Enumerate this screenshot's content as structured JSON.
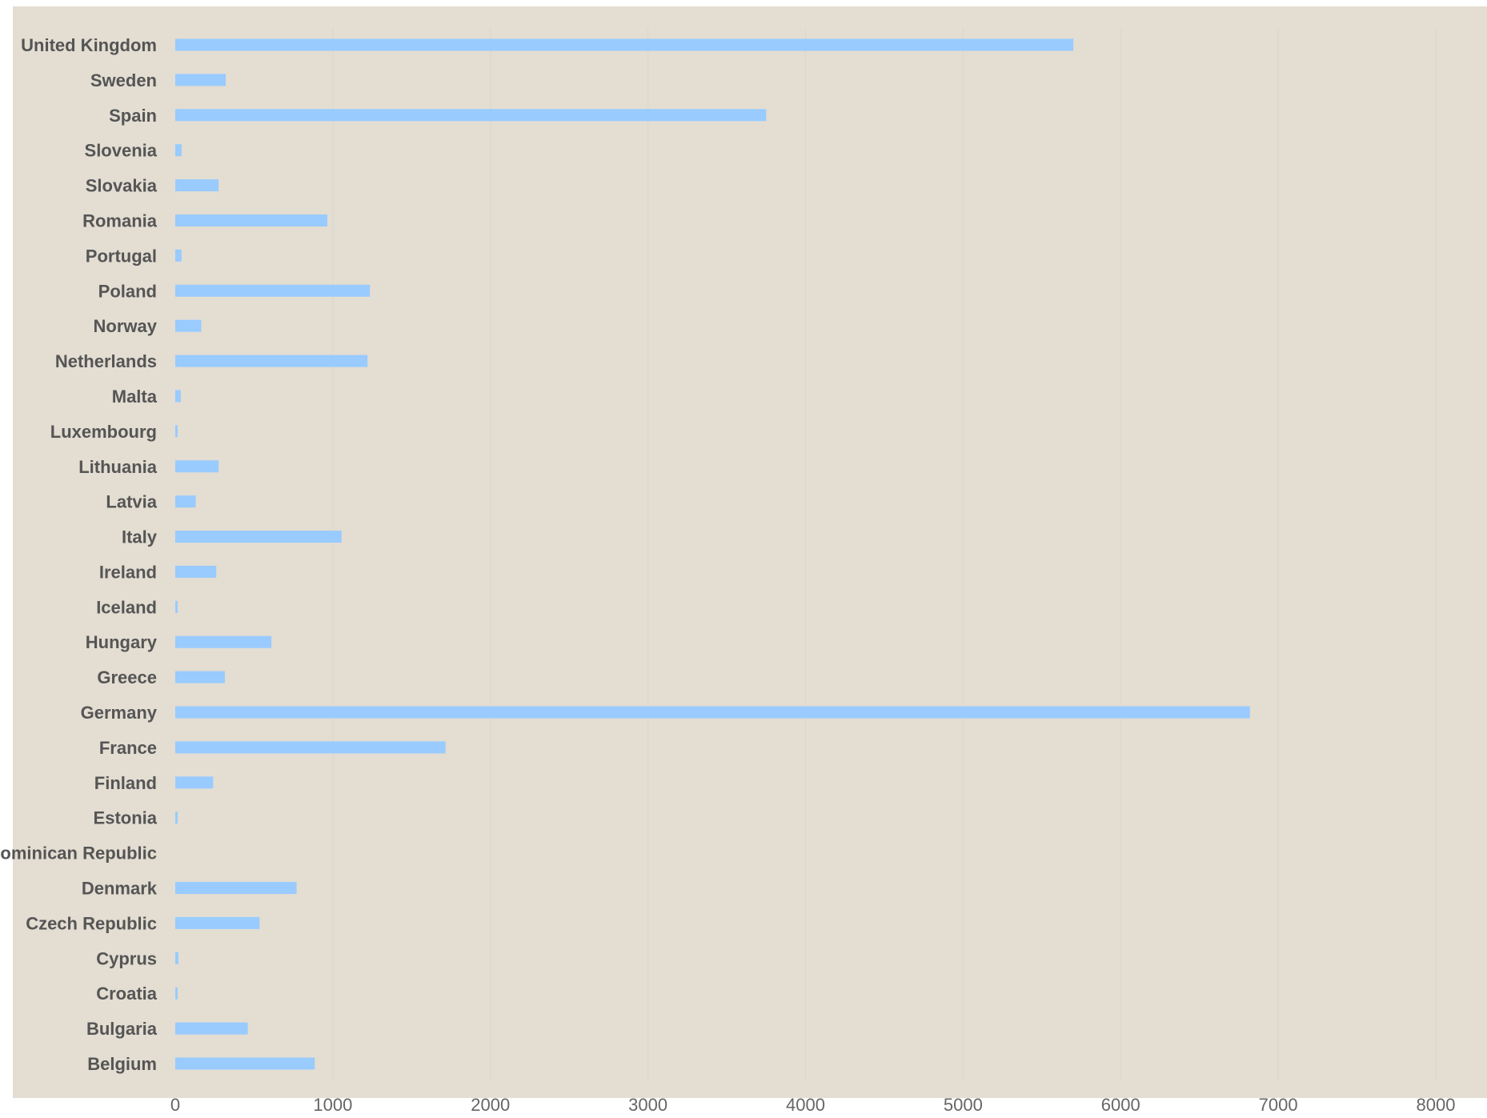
{
  "chart_data": {
    "type": "bar",
    "orientation": "horizontal",
    "title": "",
    "xlabel": "",
    "ylabel": "",
    "categories": [
      "United Kingdom",
      "Sweden",
      "Spain",
      "Slovenia",
      "Slovakia",
      "Romania",
      "Portugal",
      "Poland",
      "Norway",
      "Netherlands",
      "Malta",
      "Luxembourg",
      "Lithuania",
      "Latvia",
      "Italy",
      "Ireland",
      "Iceland",
      "Hungary",
      "Greece",
      "Germany",
      "France",
      "Finland",
      "Estonia",
      "Dominican Republic",
      "Denmark",
      "Czech Republic",
      "Cyprus",
      "Croatia",
      "Bulgaria",
      "Belgium"
    ],
    "values": [
      5700,
      320,
      3750,
      40,
      275,
      965,
      40,
      1235,
      165,
      1220,
      35,
      15,
      275,
      130,
      1055,
      260,
      15,
      610,
      315,
      6820,
      1715,
      240,
      15,
      0,
      770,
      535,
      20,
      15,
      460,
      885
    ],
    "xlim": [
      0,
      8000
    ],
    "xticks": [
      "0",
      "1000",
      "2000",
      "3000",
      "4000",
      "5000",
      "6000",
      "7000",
      "8000"
    ],
    "grid": true,
    "legend": "none",
    "colors": {
      "background": "#e3ddd2",
      "bar": "#99cbff",
      "grid": "#d9d7cb",
      "label_text": "#555555",
      "tick_text": "#666666"
    }
  }
}
